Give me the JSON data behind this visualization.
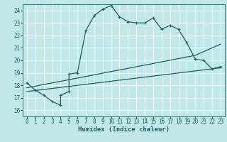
{
  "title": "",
  "xlabel": "Humidex (Indice chaleur)",
  "bg_color": "#c0e8e8",
  "grid_color": "#a0d0d0",
  "line_color": "#1a6060",
  "xlim": [
    -0.5,
    23.5
  ],
  "ylim": [
    15.5,
    24.5
  ],
  "xticks": [
    0,
    1,
    2,
    3,
    4,
    5,
    6,
    7,
    8,
    9,
    10,
    11,
    12,
    13,
    14,
    15,
    16,
    17,
    18,
    19,
    20,
    21,
    22,
    23
  ],
  "yticks": [
    16,
    17,
    18,
    19,
    20,
    21,
    22,
    23,
    24
  ],
  "curve1_x": [
    0,
    1,
    2,
    3,
    4,
    4,
    5,
    5,
    6,
    7,
    8,
    9,
    10,
    11,
    12,
    13,
    14,
    15,
    16,
    17,
    18,
    19,
    20,
    21,
    22,
    23
  ],
  "curve1_y": [
    18.2,
    17.6,
    17.2,
    16.7,
    16.4,
    17.2,
    17.5,
    18.9,
    19.0,
    22.4,
    23.6,
    24.1,
    24.4,
    23.5,
    23.1,
    23.0,
    23.0,
    23.4,
    22.5,
    22.8,
    22.5,
    21.4,
    20.1,
    20.0,
    19.3,
    19.5
  ],
  "curve2_x": [
    0,
    20,
    23
  ],
  "curve2_y": [
    17.8,
    20.4,
    21.3
  ],
  "curve3_x": [
    0,
    23
  ],
  "curve3_y": [
    17.5,
    19.4
  ],
  "linewidth": 0.9,
  "xlabel_fontsize": 6.5,
  "tick_fontsize": 5.5
}
